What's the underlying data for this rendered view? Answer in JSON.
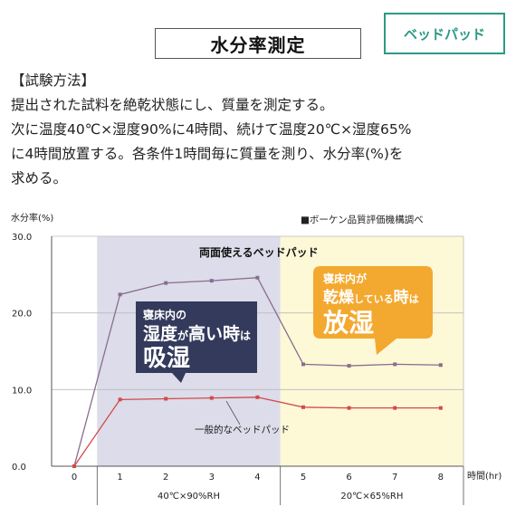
{
  "header": {
    "title": "水分率測定",
    "tag": "ベッドパッド"
  },
  "method": {
    "heading": "【試験方法】",
    "lines": [
      "提出された試料を絶乾状態にし、質量を測定する。",
      "次に温度40℃×湿度90%に4時間、続けて温度20℃×湿度65%",
      "に4時間放置する。各条件1時間毎に質量を測り、水分率(%)を",
      "求める。"
    ]
  },
  "chart_data": {
    "type": "line",
    "ylabel": "水分率(%)",
    "xlabel": "時間(hr)",
    "source_note": "■ボーケン品質評価機構調べ",
    "x": [
      0,
      1,
      2,
      3,
      4,
      5,
      6,
      7,
      8
    ],
    "x_ticks": [
      "0",
      "1",
      "2",
      "3",
      "4",
      "5",
      "6",
      "7",
      "8"
    ],
    "y_ticks": [
      "0.0",
      "10.0",
      "20.0",
      "30.0"
    ],
    "ylim": [
      0,
      30
    ],
    "grid": true,
    "phases": [
      {
        "label": "40℃×90%RH",
        "x_range": [
          0.5,
          4.5
        ],
        "color": "#dcdcea"
      },
      {
        "label": "20℃×65%RH",
        "x_range": [
          4.5,
          8.5
        ],
        "color": "#fdf8d6"
      }
    ],
    "series": [
      {
        "name": "両面使えるベッドパッド",
        "color": "#8a6d8f",
        "values": [
          0.0,
          22.4,
          23.9,
          24.2,
          24.6,
          13.3,
          13.1,
          13.3,
          13.2
        ]
      },
      {
        "name": "一般的なベッドパッド",
        "color": "#d24a4a",
        "values": [
          0.0,
          8.7,
          8.8,
          8.9,
          9.0,
          7.7,
          7.6,
          7.6,
          7.6
        ]
      }
    ],
    "callouts": [
      {
        "line1": "寝床内の",
        "line2a": "湿度",
        "line2b": "が",
        "line2c": "高い時",
        "line2d": "は",
        "line3": "吸湿",
        "color": "#333a5c"
      },
      {
        "line1": "寝床内が",
        "line2a": "乾燥",
        "line2b": "している",
        "line2c": "時",
        "line2d": "は",
        "line3": "放湿",
        "color": "#f3a92f"
      }
    ]
  }
}
